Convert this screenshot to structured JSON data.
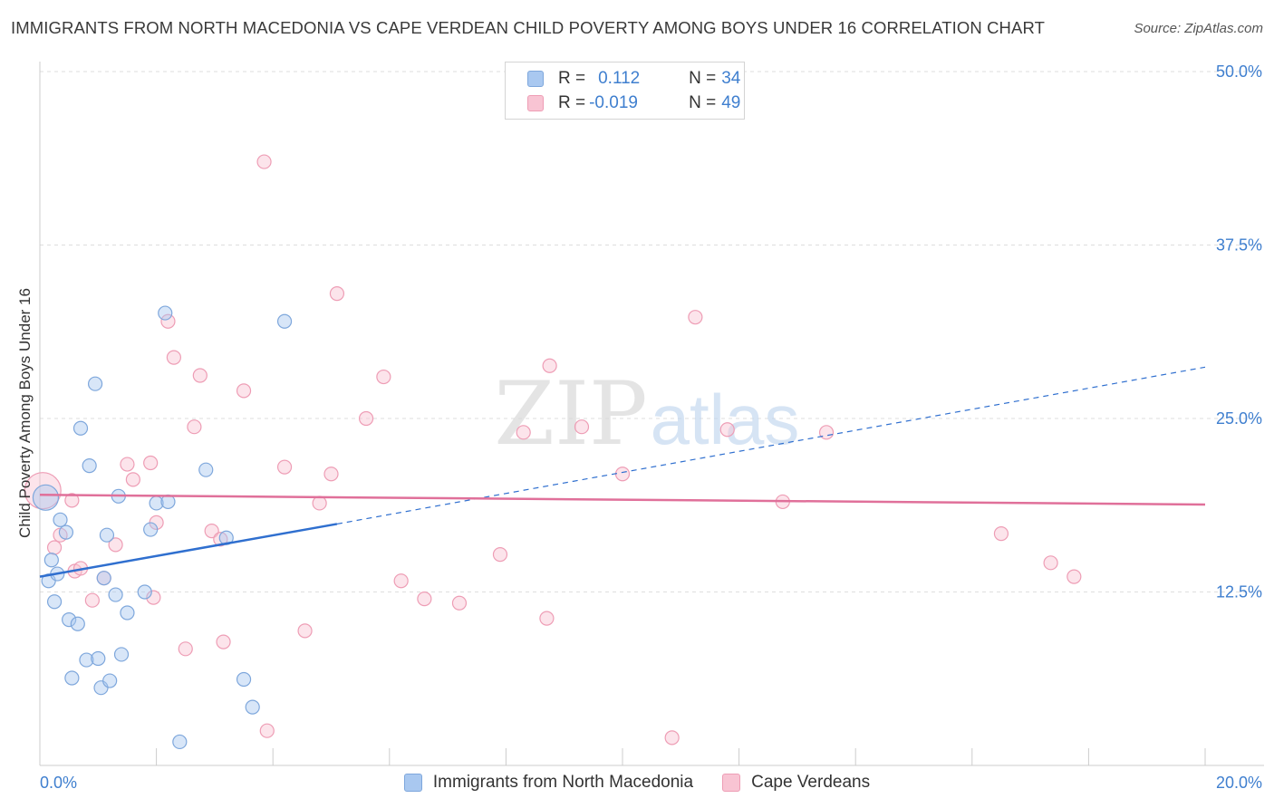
{
  "header": {
    "title": "IMMIGRANTS FROM NORTH MACEDONIA VS CAPE VERDEAN CHILD POVERTY AMONG BOYS UNDER 16 CORRELATION CHART",
    "source": "Source: ZipAtlas.com"
  },
  "watermark": {
    "zip": "ZIP",
    "atlas": "atlas"
  },
  "legend_top": [
    {
      "r_label": "R = ",
      "r_value": "0.112",
      "n_label": "N = ",
      "n_value": "34",
      "color": "#a9c8f0",
      "border": "#7ea7dc"
    },
    {
      "r_label": "R = ",
      "r_value": "-0.019",
      "n_label": "N = ",
      "n_value": "49",
      "color": "#f8c4d3",
      "border": "#ee9db5"
    }
  ],
  "legend_bottom": [
    {
      "label": "Immigrants from North Macedonia",
      "color": "#a9c8f0",
      "border": "#7ea7dc"
    },
    {
      "label": "Cape Verdeans",
      "color": "#f8c4d3",
      "border": "#ee9db5"
    }
  ],
  "chart_data": {
    "type": "scatter",
    "title": "IMMIGRANTS FROM NORTH MACEDONIA VS CAPE VERDEAN CHILD POVERTY AMONG BOYS UNDER 16 CORRELATION CHART",
    "xlabel": "",
    "ylabel": "Child Poverty Among Boys Under 16",
    "xlim": [
      0,
      20
    ],
    "ylim": [
      0,
      50
    ],
    "x_tick_labels": [
      {
        "value": 0,
        "label": "0.0%"
      },
      {
        "value": 20,
        "label": "20.0%"
      }
    ],
    "y_tick_labels": [
      {
        "value": 12.5,
        "label": "12.5%"
      },
      {
        "value": 25,
        "label": "25.0%"
      },
      {
        "value": 37.5,
        "label": "37.5%"
      },
      {
        "value": 50,
        "label": "50.0%"
      }
    ],
    "series": [
      {
        "name": "Immigrants from North Macedonia",
        "color": "#7ea7dc",
        "fill": "#a9c8f0",
        "trend_color": "#2f6fcf",
        "trend": {
          "x0": 0,
          "y0": 13.6,
          "x1": 5.1,
          "y1": 17.4,
          "x_dash_end": 20,
          "y_dash_end": 28.7
        },
        "points": [
          [
            0.1,
            19.3
          ],
          [
            0.15,
            13.3
          ],
          [
            0.2,
            14.8
          ],
          [
            0.25,
            11.8
          ],
          [
            0.3,
            13.8
          ],
          [
            0.35,
            17.7
          ],
          [
            0.45,
            16.8
          ],
          [
            0.5,
            10.5
          ],
          [
            0.55,
            6.3
          ],
          [
            0.65,
            10.2
          ],
          [
            0.7,
            24.3
          ],
          [
            0.8,
            7.6
          ],
          [
            0.85,
            21.6
          ],
          [
            0.95,
            27.5
          ],
          [
            1.0,
            7.7
          ],
          [
            1.05,
            5.6
          ],
          [
            1.1,
            13.5
          ],
          [
            1.15,
            16.6
          ],
          [
            1.2,
            6.1
          ],
          [
            1.3,
            12.3
          ],
          [
            1.35,
            19.4
          ],
          [
            1.4,
            8.0
          ],
          [
            1.5,
            11.0
          ],
          [
            1.8,
            12.5
          ],
          [
            1.9,
            17.0
          ],
          [
            2.0,
            18.9
          ],
          [
            2.15,
            32.6
          ],
          [
            2.2,
            19.0
          ],
          [
            2.4,
            1.7
          ],
          [
            2.85,
            21.3
          ],
          [
            3.2,
            16.4
          ],
          [
            3.5,
            6.2
          ],
          [
            3.65,
            4.2
          ],
          [
            4.2,
            32.0
          ]
        ],
        "sizes": [
          28,
          15,
          15,
          15,
          15,
          15,
          15,
          15,
          15,
          15,
          15,
          15,
          15,
          15,
          15,
          15,
          15,
          15,
          15,
          15,
          15,
          15,
          15,
          15,
          15,
          15,
          15,
          15,
          15,
          15,
          15,
          15,
          15,
          15
        ]
      },
      {
        "name": "Cape Verdeans",
        "color": "#ee9db5",
        "fill": "#f8c4d3",
        "trend_color": "#e0709a",
        "trend": {
          "x0": 0,
          "y0": 19.5,
          "x1": 20,
          "y1": 18.8
        },
        "points": [
          [
            0.05,
            19.8
          ],
          [
            0.25,
            15.7
          ],
          [
            0.35,
            16.6
          ],
          [
            0.55,
            19.1
          ],
          [
            0.6,
            14.0
          ],
          [
            0.7,
            14.2
          ],
          [
            0.9,
            11.9
          ],
          [
            1.1,
            13.5
          ],
          [
            1.3,
            15.9
          ],
          [
            1.5,
            21.7
          ],
          [
            1.6,
            20.6
          ],
          [
            1.9,
            21.8
          ],
          [
            1.95,
            12.1
          ],
          [
            2.0,
            17.5
          ],
          [
            2.2,
            32.0
          ],
          [
            2.3,
            29.4
          ],
          [
            2.5,
            8.4
          ],
          [
            2.65,
            24.4
          ],
          [
            2.75,
            28.1
          ],
          [
            2.95,
            16.9
          ],
          [
            3.1,
            16.3
          ],
          [
            3.15,
            8.9
          ],
          [
            3.5,
            27.0
          ],
          [
            3.85,
            43.5
          ],
          [
            3.9,
            2.5
          ],
          [
            4.2,
            21.5
          ],
          [
            4.55,
            9.7
          ],
          [
            4.8,
            18.9
          ],
          [
            5.0,
            21.0
          ],
          [
            5.1,
            34.0
          ],
          [
            5.6,
            25.0
          ],
          [
            5.9,
            28.0
          ],
          [
            6.2,
            13.3
          ],
          [
            6.6,
            12.0
          ],
          [
            7.2,
            11.7
          ],
          [
            7.9,
            15.2
          ],
          [
            8.3,
            24.0
          ],
          [
            8.7,
            10.6
          ],
          [
            8.75,
            28.8
          ],
          [
            9.3,
            24.4
          ],
          [
            10.0,
            21.0
          ],
          [
            10.85,
            2.0
          ],
          [
            11.25,
            32.3
          ],
          [
            11.8,
            24.2
          ],
          [
            12.75,
            19.0
          ],
          [
            13.5,
            24.0
          ],
          [
            16.5,
            16.7
          ],
          [
            17.35,
            14.6
          ],
          [
            17.75,
            13.6
          ]
        ],
        "sizes": [
          40,
          15,
          15,
          15,
          15,
          15,
          15,
          15,
          15,
          15,
          15,
          15,
          15,
          15,
          15,
          15,
          15,
          15,
          15,
          15,
          15,
          15,
          15,
          15,
          15,
          15,
          15,
          15,
          15,
          15,
          15,
          15,
          15,
          15,
          15,
          15,
          15,
          15,
          15,
          15,
          15,
          15,
          15,
          15,
          15,
          15,
          15,
          15,
          15
        ]
      }
    ]
  }
}
